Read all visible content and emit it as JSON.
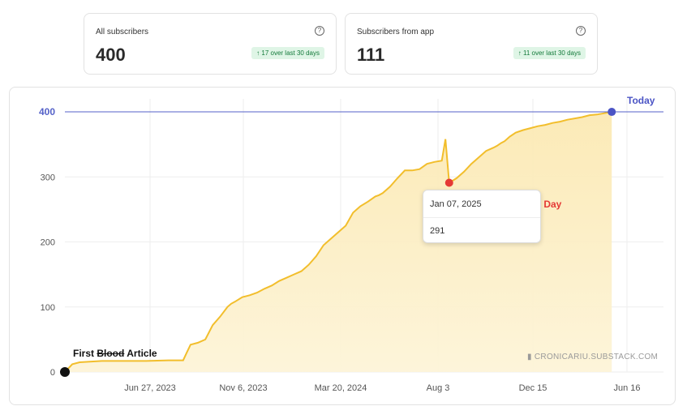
{
  "cards": [
    {
      "title": "All subscribers",
      "value": "400",
      "badge": "17 over last 30 days"
    },
    {
      "title": "Subscribers from app",
      "value": "111",
      "badge": "11 over last 30 days"
    }
  ],
  "help_icon_glyph": "?",
  "badge_arrow": "↑",
  "annotations": {
    "today": "Today",
    "judgement": "Judgement Day",
    "first_a": "First ",
    "first_b": "Blood",
    "first_c": " Article"
  },
  "tooltip": {
    "date": "Jan 07, 2025",
    "value": "291"
  },
  "watermark": "CRONICARIU.SUBSTACK.COM",
  "colors": {
    "line": "#f2be2c",
    "fill": "#fbeec4",
    "reference": "#5461c8",
    "today_dot": "#4b54c5",
    "red_dot": "#e53935",
    "start_dot": "#111111"
  },
  "chart_data": {
    "type": "area",
    "x_tick_labels": [
      "Jun 27, 2023",
      "Nov 6, 2023",
      "Mar 20, 2024",
      "Aug 3",
      "Dec 15",
      "Jun 16"
    ],
    "y_ticks": [
      0,
      100,
      200,
      300,
      400
    ],
    "xlim": [
      0,
      810
    ],
    "ylim": [
      0,
      420
    ],
    "reference_line": 400,
    "x": [
      0,
      10,
      20,
      50,
      80,
      110,
      140,
      150,
      160,
      165,
      170,
      180,
      190,
      200,
      210,
      220,
      225,
      230,
      240,
      250,
      260,
      270,
      280,
      290,
      300,
      310,
      320,
      330,
      340,
      350,
      360,
      370,
      380,
      390,
      400,
      410,
      420,
      425,
      430,
      440,
      450,
      460,
      470,
      480,
      490,
      500,
      510,
      515,
      520,
      530,
      540,
      550,
      560,
      570,
      580,
      585,
      590,
      595,
      600,
      602,
      610,
      620,
      630,
      640,
      650,
      660,
      670,
      680,
      690,
      700,
      710,
      720,
      730,
      740
    ],
    "values": [
      0,
      12,
      15,
      17,
      17,
      17,
      18,
      18,
      18,
      30,
      42,
      45,
      50,
      72,
      85,
      100,
      105,
      108,
      115,
      118,
      122,
      128,
      133,
      140,
      145,
      150,
      155,
      165,
      178,
      195,
      205,
      215,
      225,
      245,
      255,
      262,
      270,
      272,
      275,
      285,
      298,
      310,
      310,
      312,
      320,
      323,
      325,
      358,
      291,
      298,
      308,
      320,
      330,
      340,
      345,
      348,
      352,
      355,
      360,
      362,
      368,
      372,
      375,
      378,
      380,
      383,
      385,
      388,
      390,
      392,
      395,
      396,
      398,
      400
    ],
    "highlight": {
      "label": "Jan 07, 2025",
      "value": 291
    }
  }
}
